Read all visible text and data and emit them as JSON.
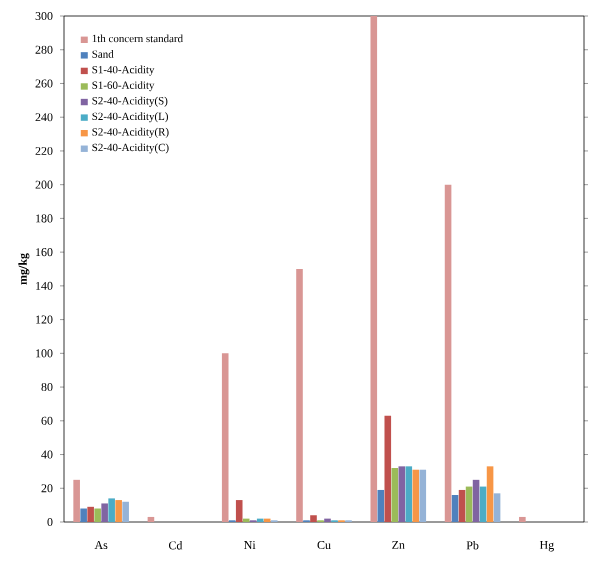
{
  "chart_data": {
    "type": "bar",
    "ylabel": "mg/kg",
    "categories": [
      "As",
      "Cd",
      "Ni",
      "Cu",
      "Zn",
      "Pb",
      "Hg"
    ],
    "series": [
      {
        "name": "1th concern standard",
        "color": "#d99694",
        "values": [
          25,
          3,
          100,
          150,
          300,
          200,
          3
        ]
      },
      {
        "name": "Sand",
        "color": "#4f81bd",
        "values": [
          8,
          0,
          1,
          1,
          19,
          16,
          0
        ]
      },
      {
        "name": "S1-40-Acidity",
        "color": "#c0504d",
        "values": [
          9,
          0,
          13,
          4,
          63,
          19,
          0
        ]
      },
      {
        "name": "S1-60-Acidity",
        "color": "#9bbb59",
        "values": [
          8,
          0,
          2,
          1,
          32,
          21,
          0
        ]
      },
      {
        "name": "S2-40-Acidity(S)",
        "color": "#8064a2",
        "values": [
          11,
          0,
          1,
          2,
          33,
          25,
          0
        ]
      },
      {
        "name": "S2-40-Acidity(L)",
        "color": "#4bacc6",
        "values": [
          14,
          0,
          2,
          1,
          33,
          21,
          0
        ]
      },
      {
        "name": "S2-40-Acidity(R)",
        "color": "#f79646",
        "values": [
          13,
          0,
          2,
          1,
          31,
          33,
          0
        ]
      },
      {
        "name": "S2-40-Acidity(C)",
        "color": "#95b3d7",
        "values": [
          12,
          0,
          1,
          1,
          31,
          17,
          0
        ]
      }
    ],
    "ylim": [
      0,
      300
    ],
    "yticks": [
      0,
      20,
      40,
      60,
      80,
      100,
      120,
      140,
      160,
      180,
      200,
      220,
      240,
      260,
      280,
      300
    ],
    "grid": false,
    "legend": "top left"
  }
}
